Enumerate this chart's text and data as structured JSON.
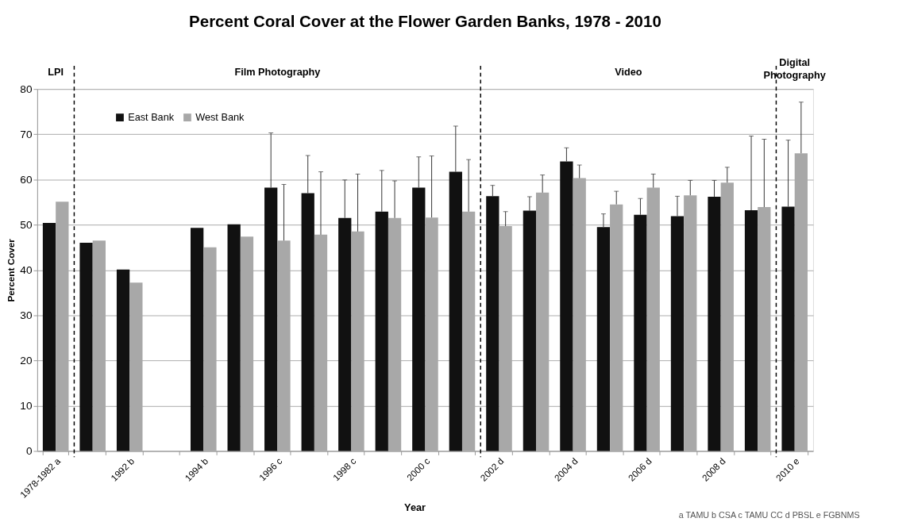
{
  "chart_data": {
    "type": "bar",
    "title": "Percent Coral Cover at the Flower Garden Banks,  1978 - 2010",
    "xlabel": "Year",
    "ylabel": "Percent Cover",
    "categories": [
      "1978-1982 a",
      null,
      "1992 b",
      null,
      "1994 b",
      null,
      "1996 c",
      null,
      "1998 c",
      null,
      "2000 c",
      null,
      "2002 d",
      null,
      "2004 d",
      null,
      "2006 d",
      null,
      "2008 d",
      null,
      "2010 e"
    ],
    "series": [
      {
        "name": "East Bank",
        "color": "#111111",
        "values": [
          50.4,
          46.0,
          40.1,
          null,
          49.3,
          50.1,
          58.2,
          57.0,
          51.5,
          52.9,
          58.2,
          61.7,
          56.3,
          53.1,
          64.0,
          49.5,
          52.2,
          51.9,
          56.2,
          53.2,
          54.0
        ],
        "errors": [
          null,
          null,
          null,
          null,
          null,
          null,
          [
            58.2,
            70.3
          ],
          [
            57.0,
            65.3
          ],
          [
            51.5,
            59.9
          ],
          [
            52.9,
            62.0
          ],
          [
            58.2,
            65.0
          ],
          [
            61.7,
            71.8
          ],
          [
            56.3,
            58.7
          ],
          [
            53.1,
            56.2
          ],
          [
            64.0,
            67.0
          ],
          [
            49.5,
            52.4
          ],
          [
            52.2,
            55.8
          ],
          [
            51.9,
            56.3
          ],
          [
            56.2,
            59.8
          ],
          [
            53.2,
            69.6
          ],
          [
            54.0,
            68.7
          ]
        ]
      },
      {
        "name": "West Bank",
        "color": "#a8a8a8",
        "values": [
          55.1,
          46.5,
          37.2,
          null,
          45.0,
          47.4,
          46.5,
          47.8,
          48.5,
          51.5,
          51.6,
          52.9,
          49.7,
          57.1,
          60.3,
          54.5,
          58.2,
          56.5,
          59.3,
          53.9,
          65.8
        ],
        "errors": [
          null,
          null,
          null,
          null,
          null,
          null,
          [
            46.5,
            58.9
          ],
          [
            47.8,
            61.7
          ],
          [
            48.5,
            61.2
          ],
          [
            51.5,
            59.7
          ],
          [
            51.6,
            65.2
          ],
          [
            52.9,
            64.4
          ],
          [
            49.7,
            52.9
          ],
          [
            57.1,
            61.0
          ],
          [
            60.3,
            63.2
          ],
          [
            54.5,
            57.4
          ],
          [
            58.2,
            61.2
          ],
          [
            56.5,
            59.8
          ],
          [
            59.3,
            62.7
          ],
          [
            53.9,
            68.9
          ],
          [
            65.8,
            77.1
          ]
        ]
      }
    ],
    "ylim": [
      0,
      80
    ],
    "yticks": [
      0,
      10,
      20,
      30,
      40,
      50,
      60,
      70,
      80
    ],
    "grid": "y",
    "legend": "top left",
    "annotations": [
      "LPI",
      "Film Photography",
      "Video",
      "Digital Photography",
      "a TAMU  b CSA  c TAMU CC  d PBSL  e FGBNMS"
    ]
  }
}
